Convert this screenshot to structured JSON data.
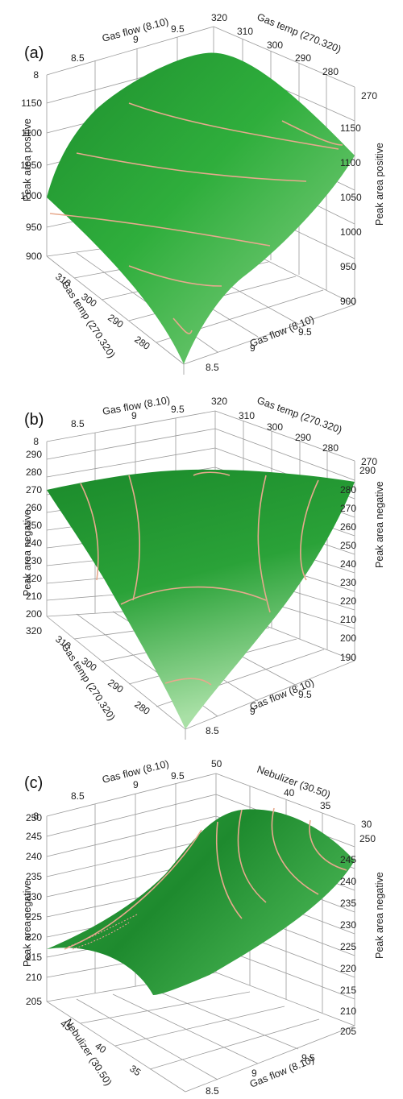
{
  "colors": {
    "surface": "#2fae3c",
    "surface_dark": "#17802a",
    "surface_light": "#8ed98e",
    "contour": "#e7a98d",
    "grid": "#9a9a9a"
  },
  "chart_data": [
    {
      "type": "surface3d",
      "panel_label": "(a)",
      "x_axis": {
        "label": "Gas flow (8.10)",
        "ticks": [
          "8.5",
          "9",
          "9.5"
        ],
        "range": [
          8,
          10
        ]
      },
      "y_axis": {
        "label": "Gas temp (270.320)",
        "ticks": [
          "280",
          "290",
          "300",
          "310"
        ],
        "range": [
          270,
          320
        ]
      },
      "z_axis": {
        "label": "Peak area positive",
        "ticks": [
          "900",
          "950",
          "1000",
          "1050",
          "1100",
          "1150"
        ],
        "range": [
          900,
          1150
        ]
      },
      "corner_labels": {
        "x_min": "8",
        "y_max": "320",
        "y_min": "270"
      },
      "surface_corners": {
        "flow8_temp270": 1080,
        "flow10_temp270": 900,
        "flow8_temp320": 975,
        "flow10_temp320": 1135
      },
      "contour_count": 5
    },
    {
      "type": "surface3d",
      "panel_label": "(b)",
      "x_axis": {
        "label": "Gas flow (8.10)",
        "ticks": [
          "8.5",
          "9",
          "9.5"
        ],
        "range": [
          8,
          10
        ]
      },
      "y_axis": {
        "label": "Gas temp (270.320)",
        "ticks": [
          "280",
          "290",
          "300",
          "310"
        ],
        "range": [
          270,
          320
        ]
      },
      "z_axis": {
        "label": "Peak area negative",
        "ticks_left": [
          "200",
          "210",
          "220",
          "230",
          "240",
          "250",
          "260",
          "270",
          "280",
          "290"
        ],
        "ticks_right": [
          "190",
          "200",
          "210",
          "220",
          "230",
          "240",
          "250",
          "260",
          "270",
          "280",
          "290"
        ],
        "range": [
          190,
          290
        ]
      },
      "corner_labels": {
        "x_min": "8",
        "y_max": "320",
        "y_min": "270",
        "left_bottom": "320"
      },
      "surface_corners": {
        "flow8_temp270": 280,
        "flow10_temp270": 195,
        "flow8_temp320": 270,
        "flow10_temp320": 275
      },
      "contour_count": 5
    },
    {
      "type": "surface3d",
      "panel_label": "(c)",
      "x_axis": {
        "label": "Gas flow (8.10)",
        "ticks": [
          "8.5",
          "9",
          "9.5"
        ],
        "range": [
          8,
          10
        ]
      },
      "y_axis": {
        "label": "Nebulizer (30.50)",
        "ticks": [
          "35",
          "40",
          "45"
        ],
        "range": [
          30,
          50
        ]
      },
      "z_axis": {
        "label": "Peak area negative",
        "ticks": [
          "205",
          "210",
          "215",
          "220",
          "225",
          "230",
          "235",
          "240",
          "245",
          "250"
        ],
        "range": [
          205,
          250
        ]
      },
      "corner_labels": {
        "x_min": "8",
        "y_max": "50",
        "y_min": "30"
      },
      "surface_corners": {
        "flow8_neb30": 207,
        "flow10_neb30": 243,
        "flow8_neb50": 215,
        "flow10_neb50": 249
      },
      "contour_count": 5
    }
  ]
}
